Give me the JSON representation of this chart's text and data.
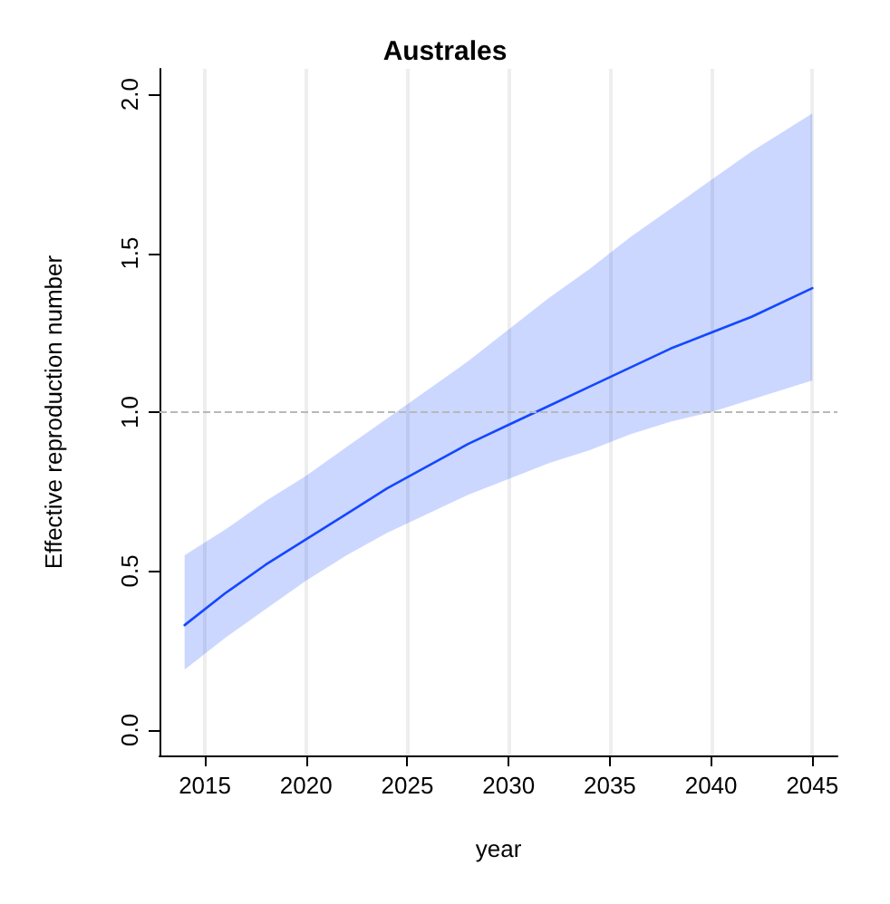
{
  "chart_data": {
    "type": "line",
    "title": "Australes",
    "xlabel": "year",
    "ylabel": "Effective reproduction number",
    "x": [
      2014,
      2016,
      2018,
      2020,
      2022,
      2024,
      2026,
      2028,
      2030,
      2032,
      2034,
      2036,
      2038,
      2040,
      2042,
      2045
    ],
    "series": [
      {
        "color": "#1447ff",
        "values": [
          0.33,
          0.43,
          0.52,
          0.6,
          0.68,
          0.76,
          0.83,
          0.9,
          0.96,
          1.02,
          1.08,
          1.14,
          1.2,
          1.25,
          1.3,
          1.39
        ],
        "lower": [
          0.19,
          0.29,
          0.38,
          0.47,
          0.55,
          0.62,
          0.68,
          0.74,
          0.79,
          0.84,
          0.88,
          0.93,
          0.97,
          1.0,
          1.04,
          1.1
        ],
        "upper": [
          0.55,
          0.63,
          0.72,
          0.8,
          0.89,
          0.98,
          1.07,
          1.16,
          1.26,
          1.36,
          1.45,
          1.55,
          1.64,
          1.73,
          1.82,
          1.94
        ]
      }
    ],
    "xlim": [
      2012.76,
      2046.24
    ],
    "ylim": [
      -0.08,
      2.08
    ],
    "xticks": [
      2015,
      2020,
      2025,
      2030,
      2035,
      2040,
      2045
    ],
    "yticks": [
      {
        "value": 0,
        "label": "0.0"
      },
      0.5,
      {
        "value": 1,
        "label": "1.0"
      },
      1.5,
      {
        "value": 2,
        "label": "2.0"
      }
    ],
    "ref_lines": [
      {
        "axis": "y",
        "value": 1.0,
        "color": "#b8b8b8",
        "line_style": "dashed"
      }
    ],
    "grid": "x",
    "marker": "none",
    "line_style": "solid"
  }
}
